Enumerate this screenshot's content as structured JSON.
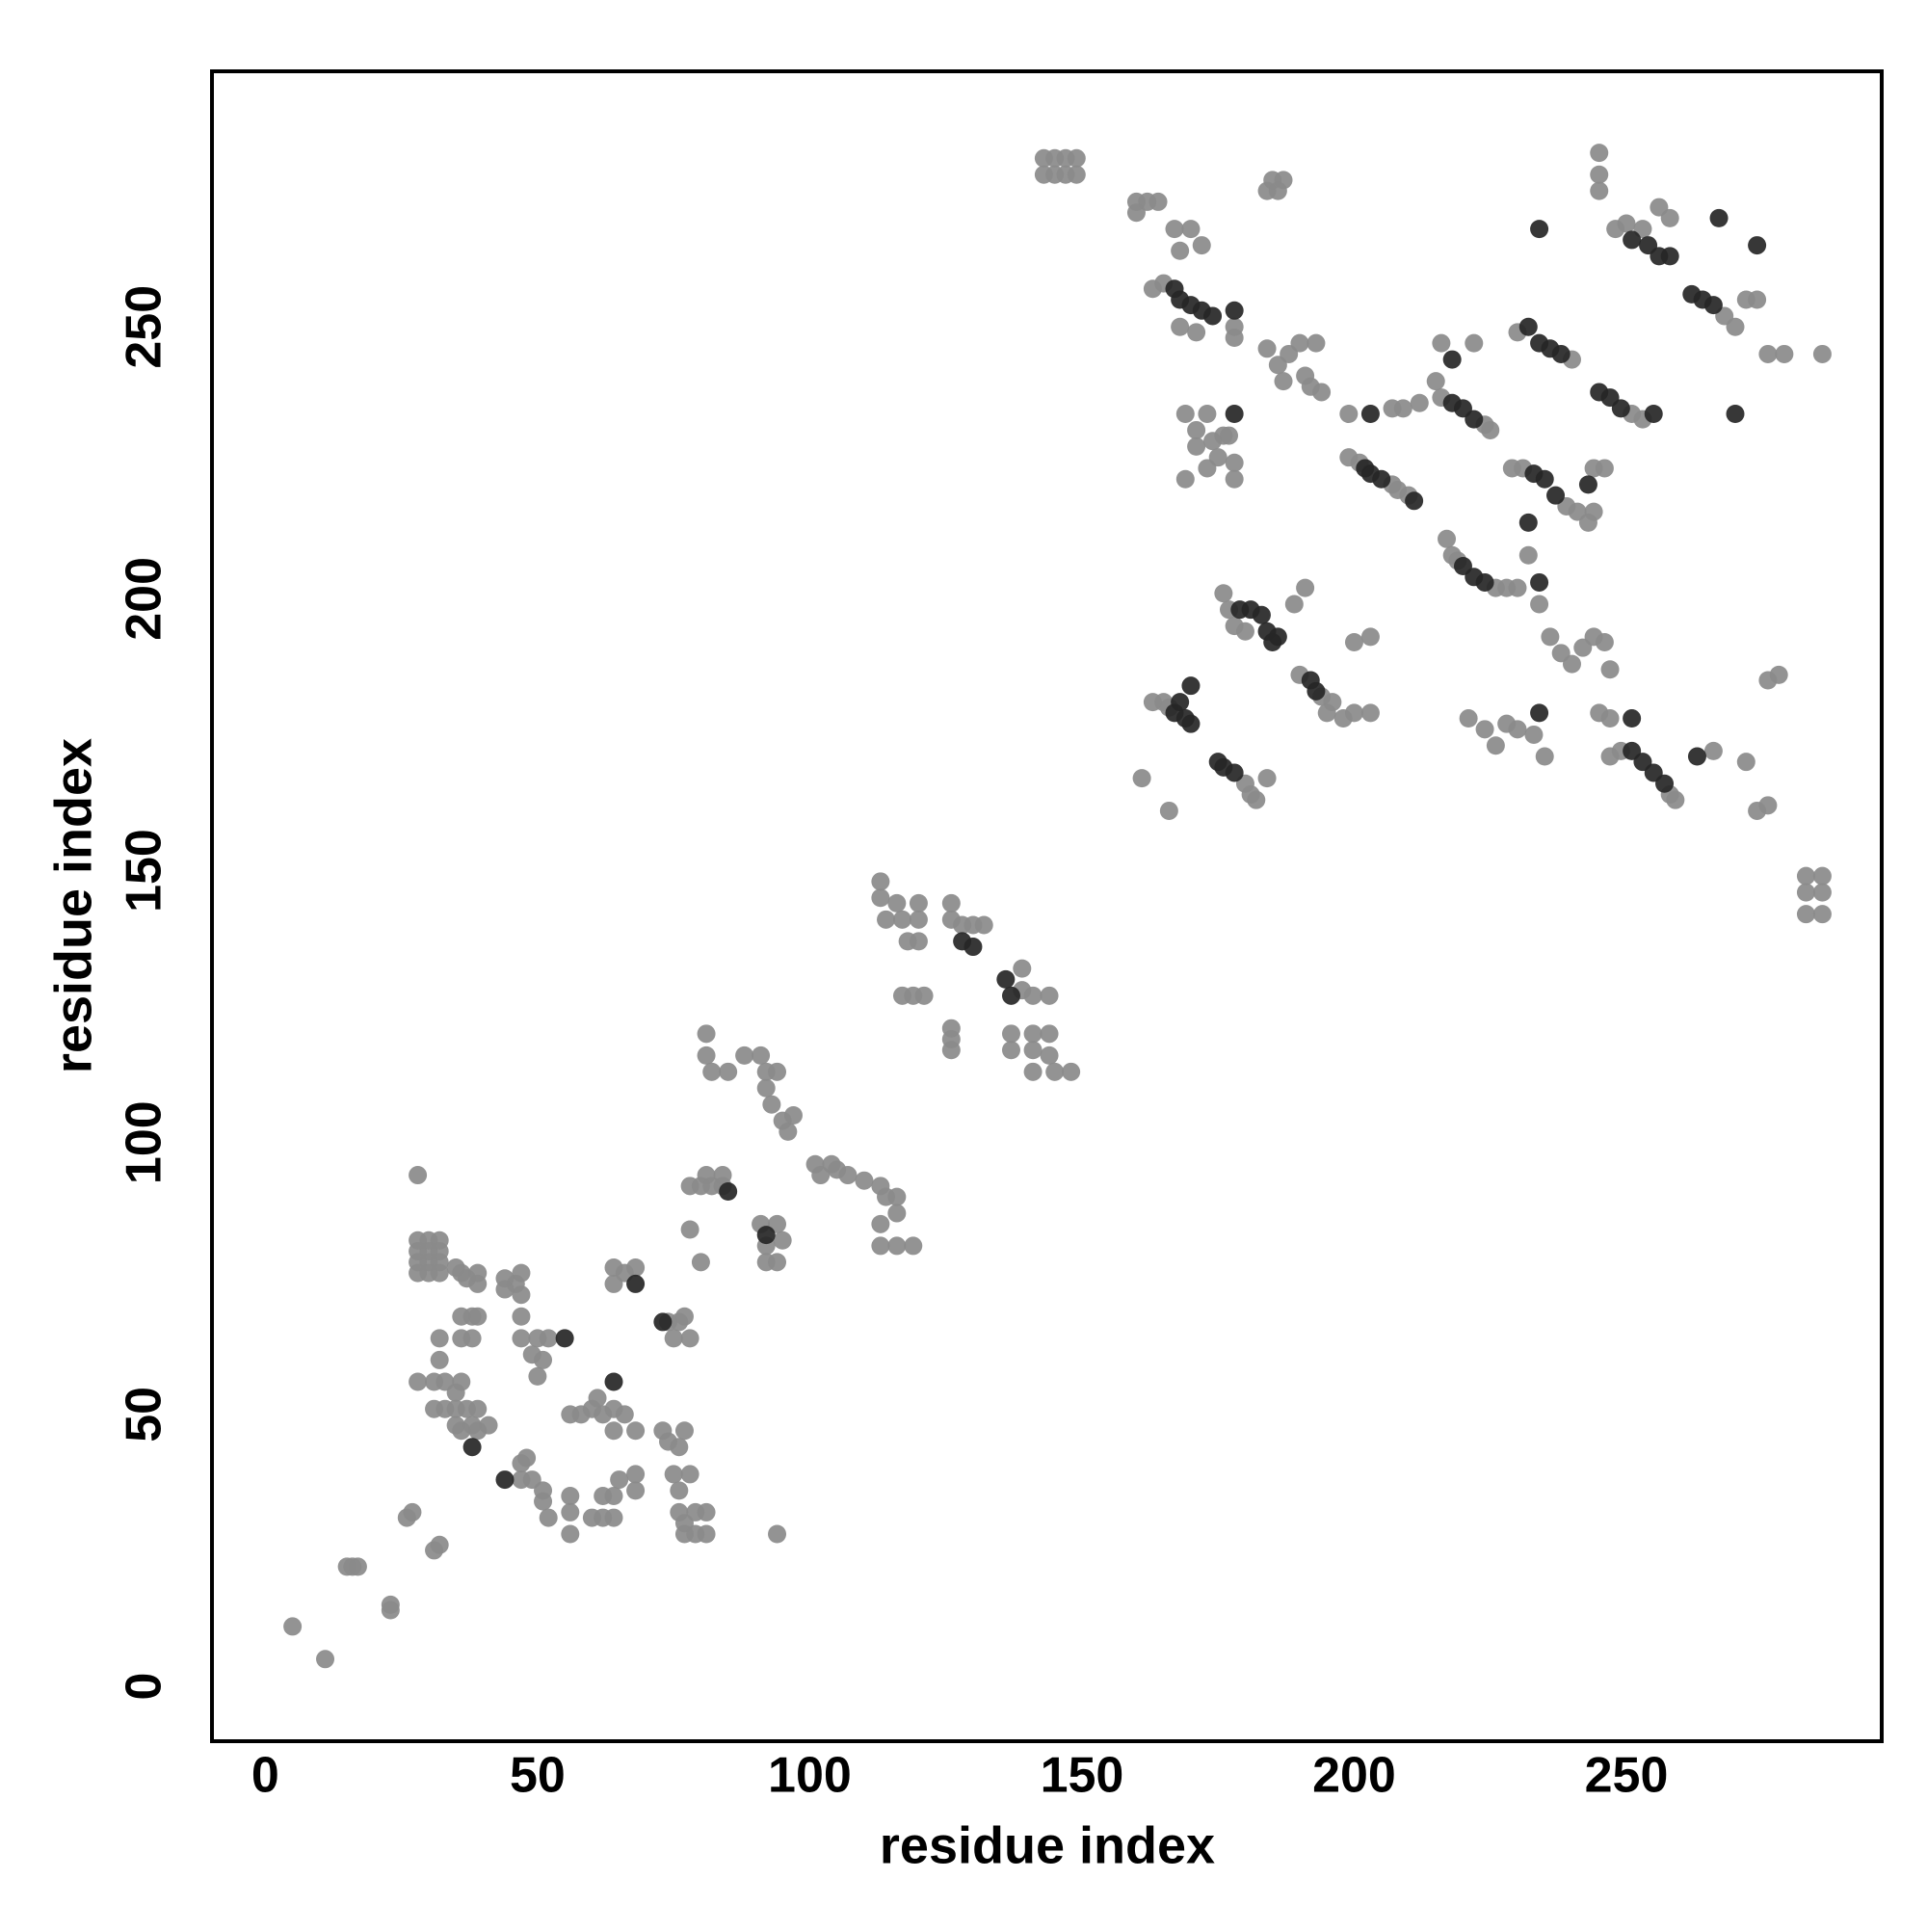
{
  "chart_data": {
    "type": "scatter",
    "xlabel": "residue index",
    "ylabel": "residue index",
    "xlim": [
      -9.8,
      296.9
    ],
    "ylim": [
      -10.1,
      297
    ],
    "xticks": [
      0,
      50,
      100,
      150,
      200,
      250
    ],
    "yticks": [
      0,
      50,
      100,
      150,
      200,
      250
    ],
    "grid": false,
    "series": [
      {
        "color": "#8a8a8a",
        "x": [
          5,
          11,
          15,
          16,
          17,
          23,
          23,
          26,
          27,
          31,
          32,
          28,
          28,
          28,
          28,
          28,
          30,
          30,
          30,
          30,
          32,
          32,
          32,
          32,
          35,
          36,
          37,
          39,
          39,
          36,
          38,
          39,
          32,
          32,
          36,
          38,
          28,
          31,
          33,
          36,
          35,
          31,
          33,
          35,
          37,
          39,
          35,
          36,
          38,
          39,
          41,
          44,
          44,
          46,
          47,
          47,
          47,
          47,
          50,
          52,
          51,
          49,
          50,
          56,
          58,
          60,
          61,
          62,
          64,
          64,
          66,
          68,
          47,
          47,
          48,
          49,
          51,
          51,
          52,
          56,
          56,
          56,
          60,
          62,
          62,
          64,
          64,
          65,
          68,
          68,
          64,
          64,
          66,
          68,
          74,
          76,
          75,
          78,
          77,
          73,
          74,
          76,
          77,
          75,
          76,
          78,
          76,
          77,
          79,
          79,
          81,
          81,
          77,
          94,
          78,
          80,
          78,
          80,
          81,
          82,
          84,
          84,
          81,
          81,
          82,
          85,
          88,
          91,
          92,
          94,
          92,
          93,
          95,
          96,
          97,
          91,
          92,
          92,
          94,
          95,
          94,
          101,
          102,
          104,
          105,
          107,
          110,
          113,
          114,
          116,
          116,
          113,
          113,
          116,
          119,
          113,
          113,
          114,
          116,
          117,
          118,
          120,
          120,
          120,
          117,
          119,
          121,
          126,
          126,
          128,
          130,
          132,
          126,
          126,
          126,
          139,
          139,
          141,
          144,
          137,
          137,
          141,
          141,
          144,
          144,
          141,
          145,
          148,
          143,
          145,
          147,
          149,
          143,
          145,
          147,
          149,
          160,
          162,
          164,
          160,
          167,
          170,
          168,
          172,
          163,
          165,
          168,
          171,
          178,
          178,
          185,
          187,
          184,
          186,
          184,
          186,
          187,
          188,
          190,
          191,
          193,
          194,
          192,
          169,
          171,
          171,
          173,
          174,
          175,
          173,
          169,
          177,
          178,
          178,
          176,
          161,
          166,
          163,
          165,
          166,
          180,
          181,
          182,
          184,
          176,
          177,
          178,
          180,
          189,
          191,
          190,
          194,
          196,
          195,
          198,
          200,
          203,
          200,
          203,
          199,
          201,
          207,
          208,
          210,
          199,
          207,
          209,
          212,
          215,
          216,
          224,
          225,
          216,
          222,
          217,
          218,
          219,
          226,
          228,
          230,
          232,
          234,
          229,
          231,
          239,
          241,
          243,
          230,
          240,
          245,
          245,
          245,
          248,
          250,
          253,
          256,
          258,
          268,
          270,
          272,
          274,
          251,
          253,
          244,
          246,
          244,
          236,
          238,
          240,
          242,
          244,
          246,
          247,
          221,
          224,
          226,
          228,
          230,
          233,
          235,
          245,
          247,
          247,
          249,
          258,
          259,
          266,
          272,
          276,
          278,
          274,
          276,
          276,
          279,
          286,
          283,
          283,
          283,
          286,
          286,
          286
        ],
        "values": [
          11,
          5,
          22,
          22,
          22,
          15,
          14,
          31,
          32,
          25,
          26,
          94,
          82,
          80,
          78,
          76,
          82,
          80,
          78,
          76,
          82,
          80,
          78,
          76,
          77,
          76,
          75,
          76,
          74,
          68,
          68,
          68,
          64,
          60,
          64,
          64,
          56,
          56,
          56,
          56,
          54,
          51,
          51,
          51,
          51,
          51,
          48,
          47,
          48,
          47,
          48,
          75,
          73,
          74,
          76,
          72,
          68,
          64,
          64,
          64,
          60,
          61,
          57,
          50,
          50,
          51,
          53,
          50,
          51,
          47,
          50,
          47,
          38,
          41,
          42,
          38,
          36,
          34,
          31,
          35,
          32,
          28,
          31,
          31,
          35,
          31,
          35,
          38,
          36,
          39,
          77,
          74,
          76,
          77,
          67,
          67,
          64,
          64,
          68,
          47,
          45,
          44,
          47,
          39,
          36,
          39,
          32,
          28,
          28,
          32,
          28,
          32,
          30,
          28,
          84,
          78,
          92,
          92,
          94,
          92,
          94,
          92,
          120,
          116,
          113,
          113,
          116,
          116,
          113,
          113,
          110,
          107,
          104,
          102,
          105,
          85,
          81,
          78,
          85,
          82,
          78,
          96,
          94,
          96,
          95,
          94,
          93,
          92,
          90,
          90,
          87,
          85,
          81,
          81,
          81,
          148,
          145,
          141,
          144,
          141,
          137,
          144,
          141,
          137,
          127,
          127,
          127,
          144,
          141,
          140,
          140,
          140,
          121,
          119,
          117,
          132,
          128,
          127,
          127,
          120,
          117,
          120,
          117,
          120,
          116,
          113,
          113,
          113,
          281,
          281,
          281,
          281,
          278,
          278,
          278,
          278,
          273,
          273,
          273,
          271,
          268,
          268,
          264,
          265,
          257,
          258,
          250,
          249,
          250,
          248,
          277,
          277,
          275,
          275,
          246,
          243,
          240,
          245,
          247,
          241,
          247,
          238,
          239,
          234,
          231,
          228,
          234,
          229,
          226,
          224,
          222,
          230,
          225,
          222,
          230,
          167,
          161,
          181,
          181,
          180,
          166,
          164,
          163,
          167,
          201,
          198,
          195,
          194,
          199,
          202,
          186,
          182,
          181,
          179,
          178,
          179,
          179,
          192,
          193,
          226,
          225,
          221,
          220,
          219,
          234,
          235,
          235,
          236,
          240,
          237,
          232,
          231,
          247,
          247,
          211,
          208,
          207,
          202,
          202,
          202,
          208,
          199,
          224,
          224,
          217,
          216,
          214,
          249,
          244,
          282,
          278,
          275,
          268,
          269,
          268,
          272,
          270,
          252,
          250,
          255,
          255,
          234,
          233,
          224,
          224,
          216,
          193,
          190,
          188,
          191,
          193,
          192,
          187,
          178,
          176,
          173,
          177,
          176,
          175,
          171,
          179,
          178,
          171,
          172,
          164,
          163,
          172,
          170,
          185,
          186,
          161,
          162,
          245,
          245,
          245,
          149,
          146,
          142,
          149,
          146,
          142
        ]
      },
      {
        "color": "#262626",
        "x": [
          38,
          55,
          64,
          44,
          68,
          73,
          85,
          92,
          128,
          130,
          136,
          137,
          167,
          168,
          170,
          172,
          174,
          178,
          178,
          167,
          168,
          169,
          170,
          170,
          175,
          176,
          178,
          179,
          181,
          183,
          184,
          185,
          186,
          192,
          193,
          202,
          203,
          205,
          211,
          203,
          218,
          220,
          222,
          218,
          220,
          222,
          224,
          232,
          234,
          233,
          235,
          237,
          232,
          234,
          236,
          238,
          234,
          251,
          254,
          256,
          258,
          267,
          274,
          262,
          264,
          266,
          270,
          245,
          247,
          249,
          255,
          243,
          234,
          251,
          251,
          253,
          255,
          257,
          263
        ],
        "values": [
          44,
          64,
          56,
          38,
          74,
          67,
          91,
          83,
          137,
          136,
          130,
          127,
          257,
          255,
          254,
          253,
          252,
          253,
          234,
          179,
          181,
          178,
          177,
          184,
          170,
          169,
          168,
          198,
          198,
          197,
          194,
          192,
          193,
          185,
          183,
          224,
          223,
          222,
          218,
          234,
          236,
          235,
          233,
          244,
          206,
          204,
          203,
          214,
          203,
          223,
          222,
          219,
          250,
          247,
          246,
          245,
          268,
          266,
          265,
          263,
          263,
          270,
          265,
          256,
          255,
          254,
          234,
          238,
          237,
          235,
          234,
          221,
          179,
          178,
          172,
          170,
          168,
          166,
          171
        ]
      }
    ]
  }
}
